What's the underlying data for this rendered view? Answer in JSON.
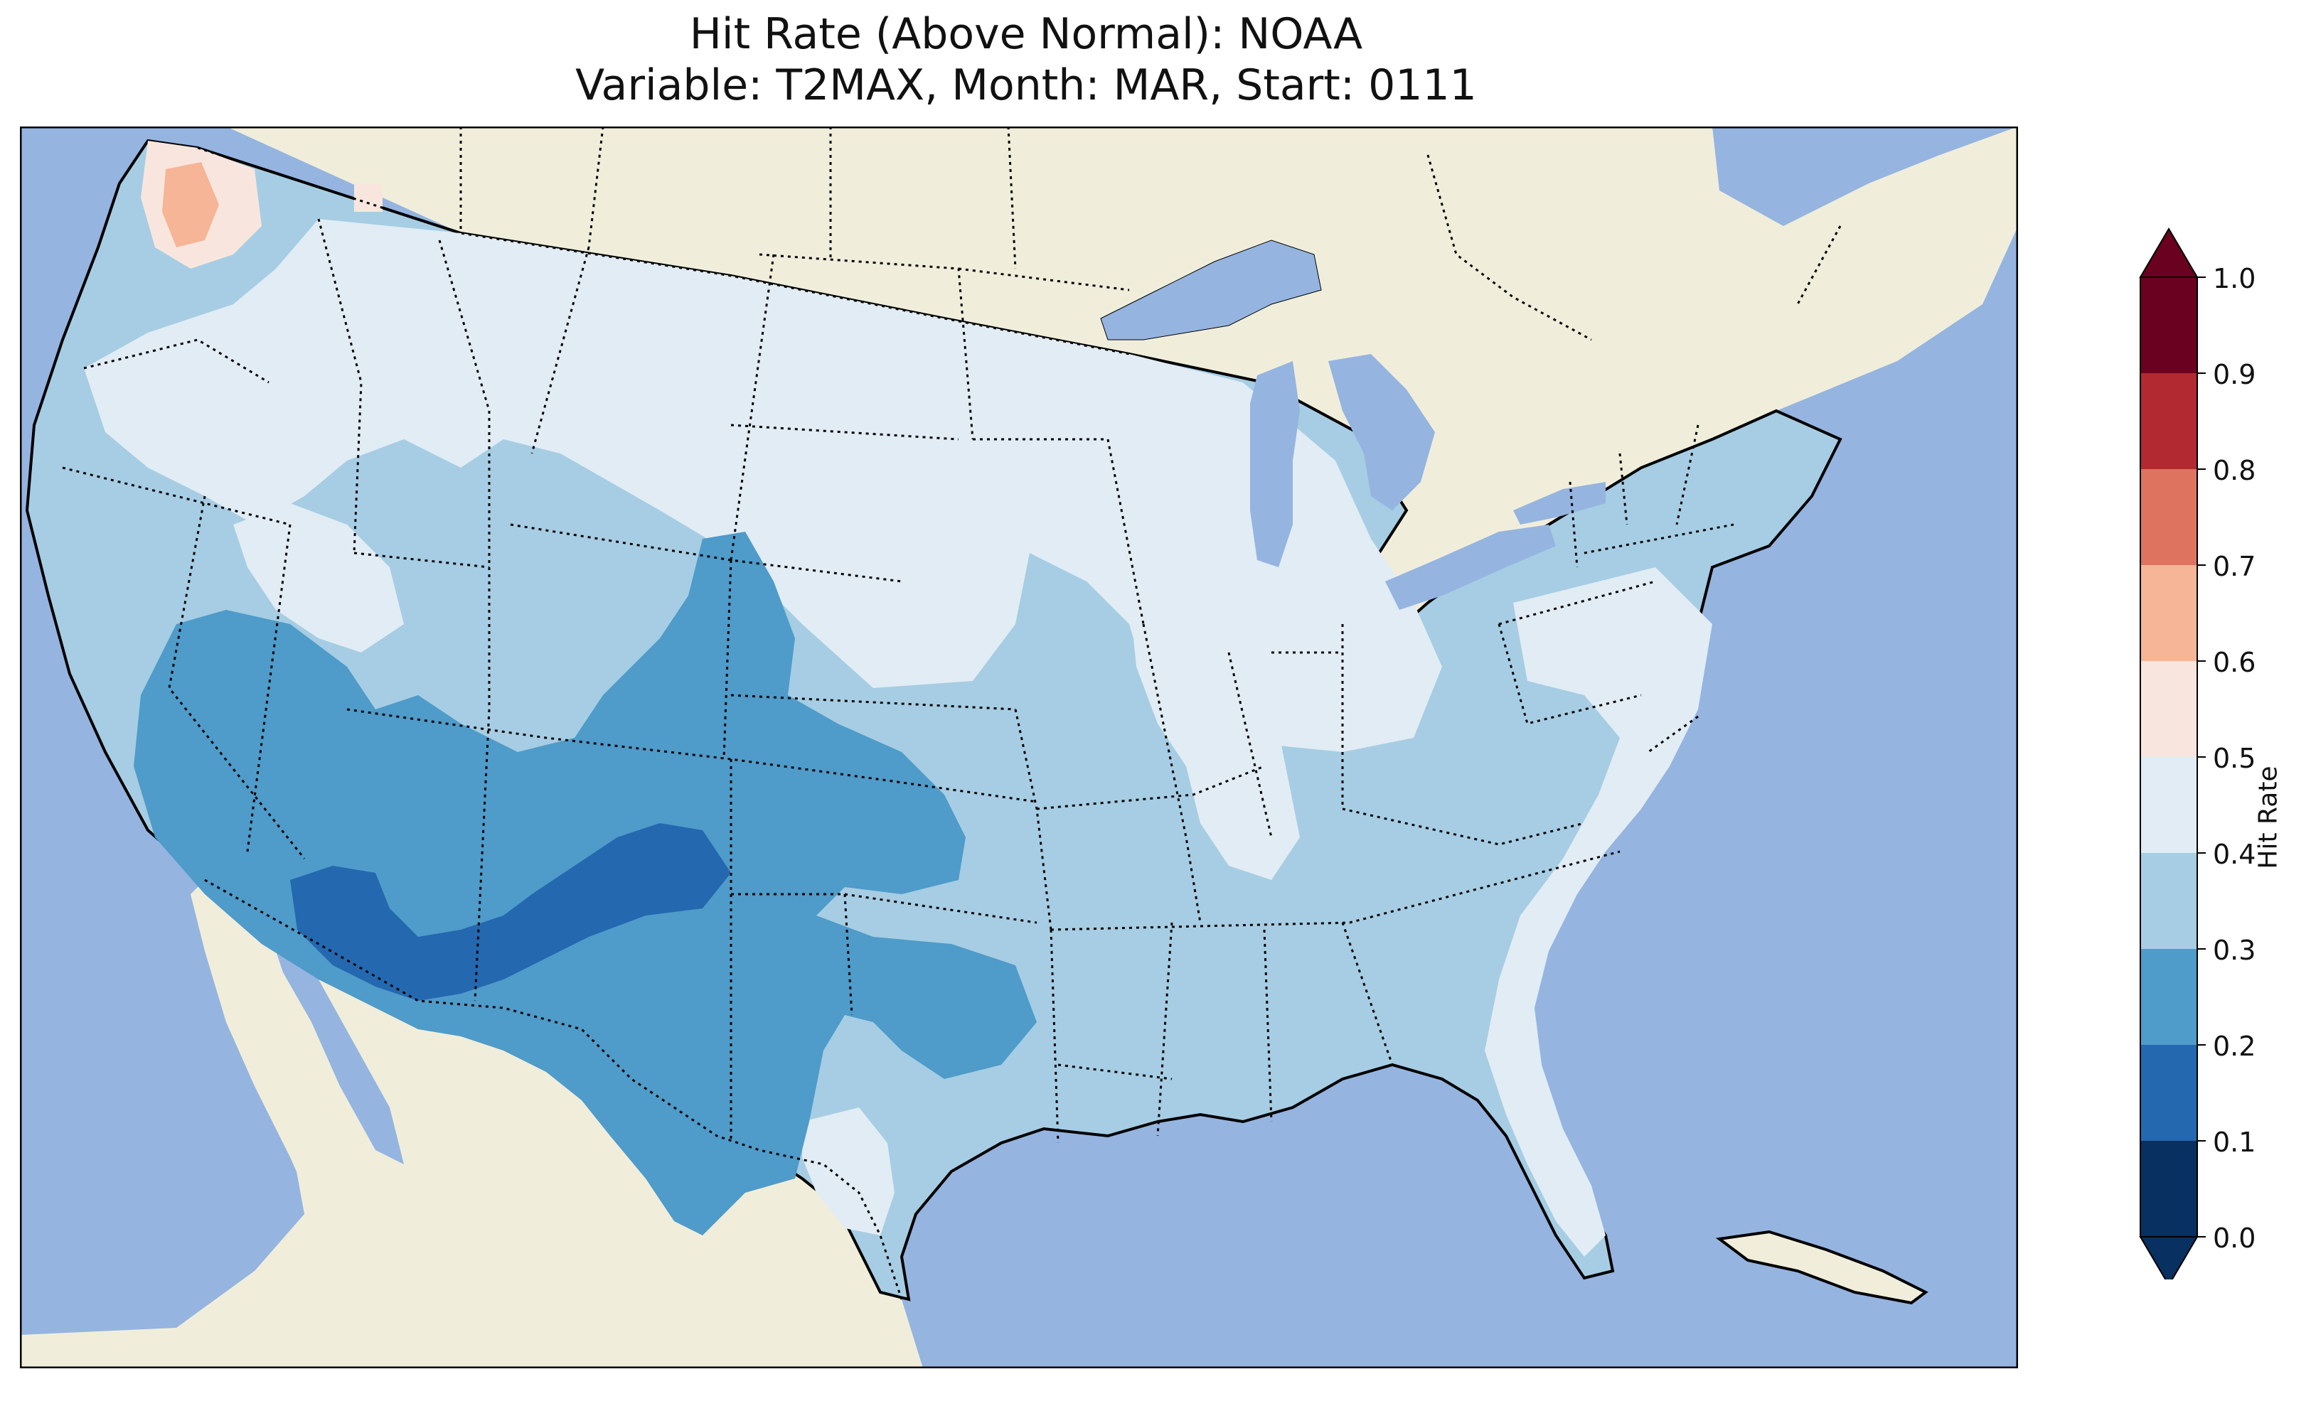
{
  "map": {
    "title_line1": "Hit Rate (Above Normal): NOAA",
    "title_line2": "Variable: T2MAX, Month: MAR, Start: 0111",
    "colors": {
      "ocean": "#95b4e0",
      "land": "#f0eedb",
      "border": "#000000"
    }
  },
  "colorbar": {
    "label": "Hit Rate",
    "ticks": [
      "0.0",
      "0.1",
      "0.2",
      "0.3",
      "0.4",
      "0.5",
      "0.6",
      "0.7",
      "0.8",
      "0.9",
      "1.0"
    ],
    "colors": [
      "#083060",
      "#2468b0",
      "#4f9bc9",
      "#a6cde3",
      "#e1ecf4",
      "#f8e6de",
      "#f5b596",
      "#de7460",
      "#b32932",
      "#6a0120"
    ],
    "extend_low": "#083060",
    "extend_high": "#6a0120"
  }
}
